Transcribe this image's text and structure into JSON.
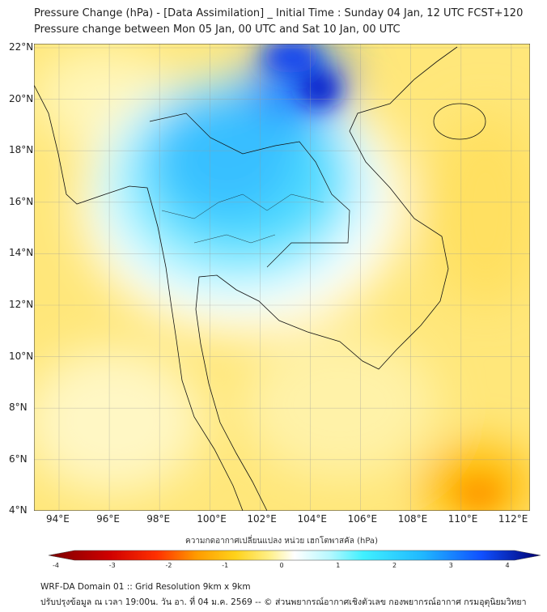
{
  "title": {
    "line1": "Pressure Change (hPa) - [Data Assimilation] _ Initial Time : Sunday 04 Jan, 12 UTC FCST+120",
    "line2": "Pressure change between Mon 05 Jan, 00 UTC and Sat 10 Jan, 00 UTC"
  },
  "map": {
    "lon_ticks": [
      "94°E",
      "96°E",
      "98°E",
      "100°E",
      "102°E",
      "104°E",
      "106°E",
      "108°E",
      "110°E",
      "112°E"
    ],
    "lat_ticks": [
      "22°N",
      "20°N",
      "18°N",
      "16°N",
      "14°N",
      "12°N",
      "10°N",
      "8°N",
      "6°N",
      "4°N"
    ],
    "lon_range": [
      93.0,
      112.7
    ],
    "lat_range": [
      4.0,
      22.2
    ]
  },
  "colorbar": {
    "label": "ความกดอากาศเปลี่ยนแปลง หน่วย เฮกโตพาสคัล (hPa)",
    "ticks": [
      "-4",
      "-3",
      "-2",
      "-1",
      "0",
      "1",
      "2",
      "3",
      "4"
    ],
    "range": [
      -4,
      4
    ],
    "colors": [
      "#7a0000",
      "#ff0000",
      "#ff8c00",
      "#ffd700",
      "#ffffff",
      "#40f0ff",
      "#20b8ff",
      "#1050ff",
      "#000070"
    ]
  },
  "footer": {
    "line1": "WRF-DA Domain 01 :: Grid Resolution 9km x 9km",
    "line2": "ปรับปรุงข้อมูล ณ เวลา 19:00น. วัน อา. ที่ 04 ม.ค. 2569 -- © ส่วนพยากรณ์อากาศเชิงตัวเลข กองพยากรณ์อากาศ กรมอุตุนิยมวิทยา"
  }
}
